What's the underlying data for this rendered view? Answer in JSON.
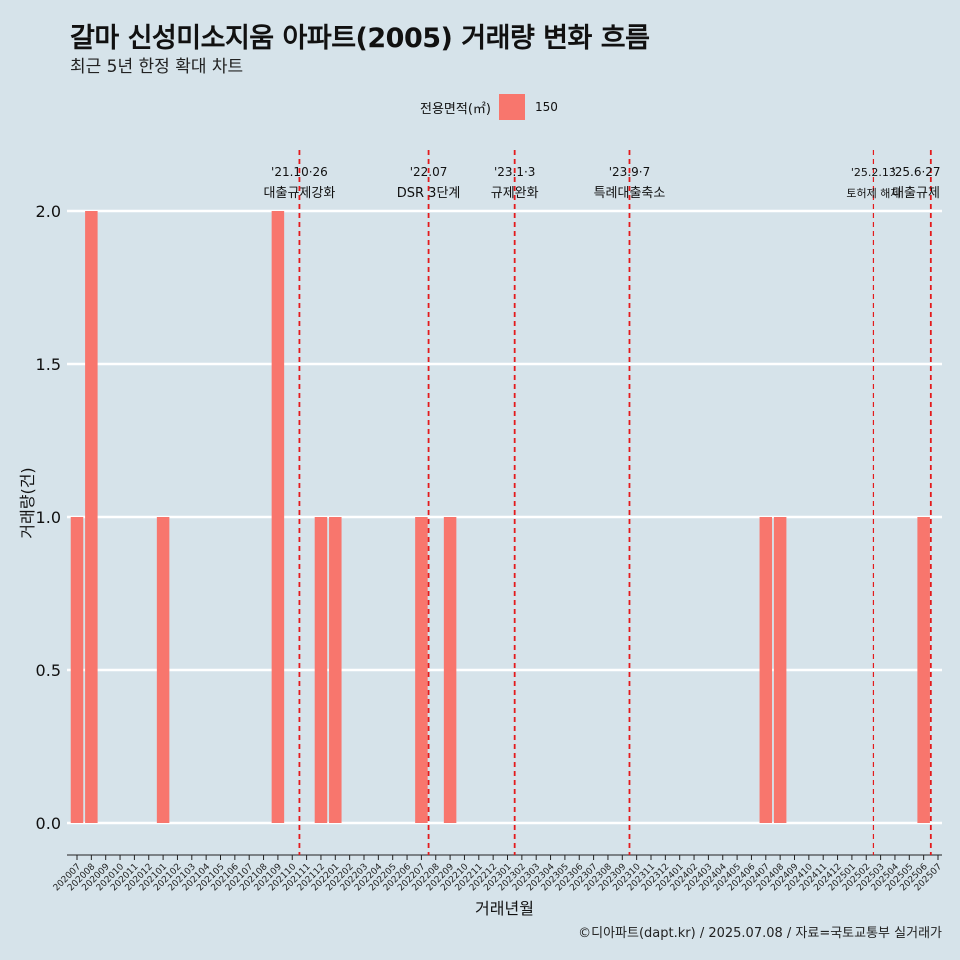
{
  "title": "갈마 신성미소지움 아파트(2005) 거래량 변화 흐름",
  "subtitle": "최근 5년 한정 확대 차트",
  "caption": "©디아파트(dapt.kr) / 2025.07.08 / 자료=국토교통부 실거래가",
  "legend": {
    "title": "전용면적(㎡)",
    "label": "150",
    "color": "#f8766d"
  },
  "colors": {
    "background": "#d6e3ea",
    "bar": "#f8766d",
    "grid": "#ffffff",
    "event_line": "#e41a1c"
  },
  "chart_data": {
    "type": "bar",
    "xlabel": "거래년월",
    "ylabel": "거래량(건)",
    "ylim": [
      0,
      2
    ],
    "y_ticks": [
      "0.0",
      "0.5",
      "1.0",
      "1.5",
      "2.0"
    ],
    "categories": [
      "202007",
      "202008",
      "202009",
      "202010",
      "202011",
      "202012",
      "202101",
      "202102",
      "202103",
      "202104",
      "202105",
      "202106",
      "202107",
      "202108",
      "202109",
      "202110",
      "202111",
      "202112",
      "202201",
      "202202",
      "202203",
      "202204",
      "202205",
      "202206",
      "202207",
      "202208",
      "202209",
      "202210",
      "202211",
      "202212",
      "202301",
      "202302",
      "202303",
      "202304",
      "202305",
      "202306",
      "202307",
      "202308",
      "202309",
      "202310",
      "202311",
      "202312",
      "202401",
      "202402",
      "202403",
      "202404",
      "202405",
      "202406",
      "202407",
      "202408",
      "202409",
      "202410",
      "202411",
      "202412",
      "202501",
      "202502",
      "202503",
      "202504",
      "202505",
      "202506",
      "202507"
    ],
    "series": [
      {
        "name": "150",
        "values": [
          1,
          2,
          0,
          0,
          0,
          0,
          1,
          0,
          0,
          0,
          0,
          0,
          0,
          0,
          2,
          0,
          0,
          1,
          1,
          0,
          0,
          0,
          0,
          0,
          1,
          0,
          1,
          0,
          0,
          0,
          0,
          0,
          0,
          0,
          0,
          0,
          0,
          0,
          0,
          0,
          0,
          0,
          0,
          0,
          0,
          0,
          0,
          0,
          1,
          1,
          0,
          0,
          0,
          0,
          0,
          0,
          0,
          0,
          0,
          1,
          0
        ]
      }
    ],
    "annotations": [
      {
        "at": "202110",
        "date": "'21.10·26",
        "text": "대출규제강화",
        "small": false
      },
      {
        "at": "202207",
        "date": "'22.07",
        "text": "DSR 3단계",
        "small": false
      },
      {
        "at": "202301",
        "date": "'23.1·3",
        "text": "규제완화",
        "small": false
      },
      {
        "at": "202309",
        "date": "'23.9·7",
        "text": "특례대출축소",
        "small": false
      },
      {
        "at": "202502",
        "date": "'25.2.13",
        "text": "토허제 해제",
        "small": true
      },
      {
        "at": "202506",
        "date": "'25.6·27",
        "text": "대출규제",
        "small": false
      }
    ]
  }
}
